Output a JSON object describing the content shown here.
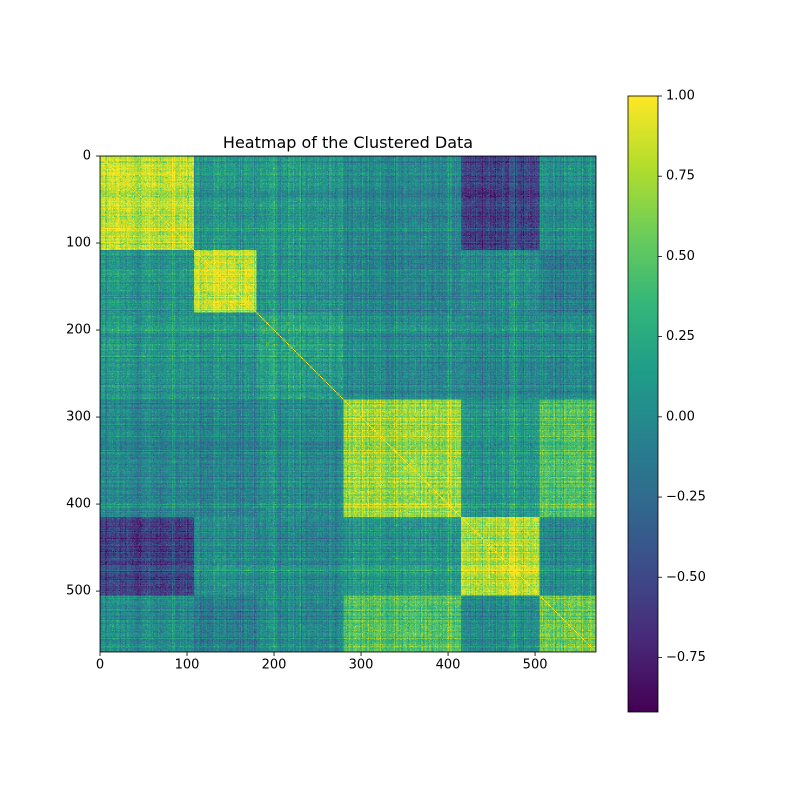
{
  "chart_data": {
    "type": "heatmap",
    "title": "Heatmap of the Clustered Data",
    "xlabel": "",
    "ylabel": "",
    "n": 570,
    "xlim": [
      0,
      570
    ],
    "ylim": [
      570,
      0
    ],
    "x_ticks": [
      0,
      100,
      200,
      300,
      400,
      500
    ],
    "y_ticks": [
      0,
      100,
      200,
      300,
      400,
      500
    ],
    "x_tick_labels": [
      "0",
      "100",
      "200",
      "300",
      "400",
      "500"
    ],
    "y_tick_labels": [
      "0",
      "100",
      "200",
      "300",
      "400",
      "500"
    ],
    "colormap": "viridis",
    "vmin": -0.92,
    "vmax": 1.0,
    "colorbar_ticks": [
      1.0,
      0.75,
      0.5,
      0.25,
      0.0,
      -0.25,
      -0.5,
      -0.75
    ],
    "colorbar_tick_labels": [
      "1.00",
      "0.75",
      "0.50",
      "0.25",
      "0.00",
      "−0.25",
      "−0.50",
      "−0.75"
    ],
    "diagonal_value": 1.0,
    "clusters": [
      {
        "start": 0,
        "end": 108
      },
      {
        "start": 108,
        "end": 180
      },
      {
        "start": 180,
        "end": 280
      },
      {
        "start": 280,
        "end": 415
      },
      {
        "start": 415,
        "end": 505
      },
      {
        "start": 505,
        "end": 570
      }
    ],
    "cluster_mean_correlation": [
      [
        0.8,
        0.05,
        0.1,
        -0.05,
        -0.55,
        0.0
      ],
      [
        0.05,
        0.8,
        0.05,
        -0.1,
        0.0,
        -0.15
      ],
      [
        0.1,
        0.05,
        0.2,
        0.0,
        0.0,
        0.0
      ],
      [
        -0.05,
        -0.1,
        0.0,
        0.7,
        0.1,
        0.45
      ],
      [
        -0.55,
        0.0,
        0.0,
        0.1,
        0.8,
        0.0
      ],
      [
        0.0,
        -0.15,
        0.0,
        0.45,
        0.0,
        0.55
      ]
    ],
    "grid": false,
    "legend": "colorbar-right"
  }
}
